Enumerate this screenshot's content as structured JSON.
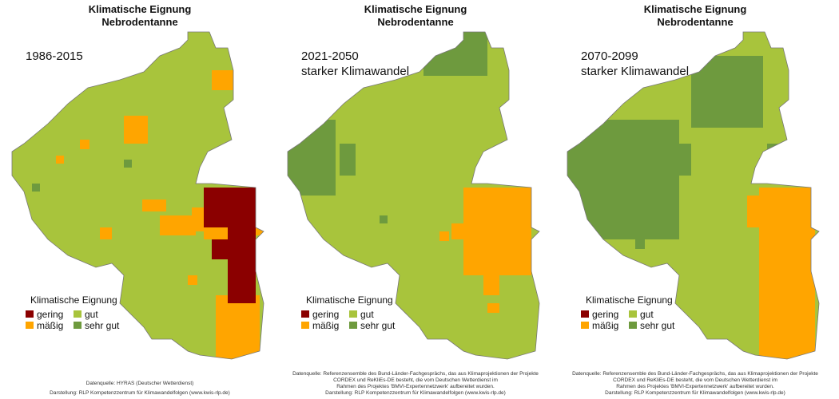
{
  "legend": {
    "title": "Klimatische Eignung",
    "items": [
      {
        "label": "gering",
        "color": "#8b0000"
      },
      {
        "label": "gut",
        "color": "#a8c43c"
      },
      {
        "label": "mäßig",
        "color": "#ffa500"
      },
      {
        "label": "sehr gut",
        "color": "#6e9a3e"
      }
    ]
  },
  "panels": [
    {
      "title": "Klimatische Eignung",
      "subtitle": "Nebrodentanne",
      "period": [
        "1986-2015"
      ],
      "source": [
        "Datenquelle: HYRAS (Deutscher Wetterdienst)"
      ],
      "credit": "Darstellung: RLP Kompetenzzentrum für Klimawandelfolgen (www.kwis-rlp.de)"
    },
    {
      "title": "Klimatische Eignung",
      "subtitle": "Nebrodentanne",
      "period": [
        "2021-2050",
        "starker Klimawandel"
      ],
      "source": [
        "Datenquelle: Referenzensemble des Bund-Länder-Fachgesprächs, das aus Klimaprojektionen der Projekte",
        "CORDEX und ReKliEs-DE besteht, die vom Deutschen Wetterdienst im",
        "Rahmen des Projektes 'BMVI-Expertennetzwerk' aufbereitet wurden."
      ],
      "credit": "Darstellung: RLP Kompetenzzentrum für Klimawandelfolgen (www.kwis-rlp.de)"
    },
    {
      "title": "Klimatische Eignung",
      "subtitle": "Nebrodentanne",
      "period": [
        "2070-2099",
        "starker Klimawandel"
      ],
      "source": [
        "Datenquelle: Referenzensemble des Bund-Länder-Fachgesprächs, das aus Klimaprojektionen der Projekte",
        "CORDEX und ReKliEs-DE besteht, die vom Deutschen Wetterdienst im",
        "Rahmen des Projektes 'BMVI-Expertennetzwerk' aufbereitet wurden."
      ],
      "credit": "Darstellung: RLP Kompetenzzentrum für Klimawandelfolgen (www.kwis-rlp.de)"
    }
  ]
}
